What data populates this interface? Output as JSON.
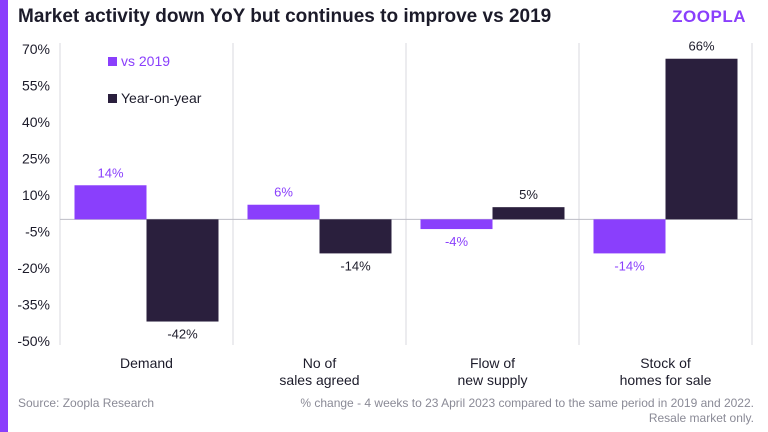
{
  "header": {
    "title": "Market activity down YoY but continues to improve vs 2019",
    "logo_text": "ZOOPLA"
  },
  "footer": {
    "source": "Source: Zoopla Research",
    "note_line1": "% change - 4 weeks to 23 April 2023 compared to the same period in 2019 and 2022.",
    "note_line2": "Resale market only."
  },
  "colors": {
    "vs_2019": "#8a3ffc",
    "year_on_year": "#2a1f3d",
    "accent": "#8a3ffc",
    "grid": "#d9d9df"
  },
  "chart_data": {
    "type": "bar",
    "categories": [
      [
        "Demand"
      ],
      [
        "No of",
        "sales agreed"
      ],
      [
        "Flow of",
        "new supply"
      ],
      [
        "Stock of",
        "homes for sale"
      ]
    ],
    "series": [
      {
        "name": "vs 2019",
        "values": [
          14,
          6,
          -4,
          -14
        ],
        "labels": [
          "14%",
          "6%",
          "-4%",
          "-14%"
        ]
      },
      {
        "name": "Year-on-year",
        "values": [
          -42,
          -14,
          5,
          66
        ],
        "labels": [
          "-42%",
          "-14%",
          "5%",
          "66%"
        ]
      }
    ],
    "yticks": [
      70,
      55,
      40,
      25,
      10,
      -5,
      -20,
      -35,
      -50
    ],
    "ytick_labels": [
      "70%",
      "55%",
      "40%",
      "25%",
      "10%",
      "-5%",
      "-20%",
      "-35%",
      "-50%"
    ],
    "ylim": [
      -50,
      70
    ],
    "legend_position": "top-left",
    "grid": "vertical separators between categories"
  }
}
